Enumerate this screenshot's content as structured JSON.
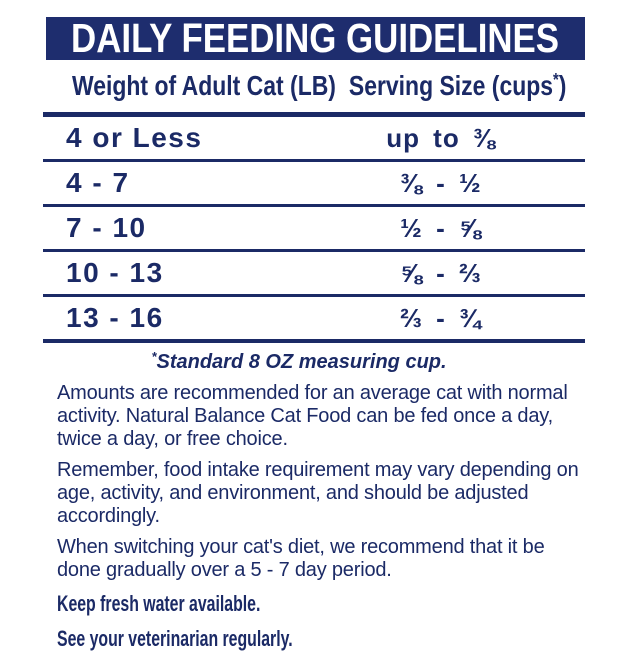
{
  "header": {
    "title": "DAILY FEEDING GUIDELINES"
  },
  "table": {
    "columns": {
      "weight": "Weight of Adult Cat (LB)",
      "serving_prefix": "Serving Size (cups",
      "serving_sup": "*",
      "serving_suffix": ")"
    },
    "rows": [
      {
        "weight": "4 or Less",
        "serving": "up to ⅜"
      },
      {
        "weight": "4 - 7",
        "serving": "⅜ - ½"
      },
      {
        "weight": "7 - 10",
        "serving": "½ - ⅝"
      },
      {
        "weight": "10 - 13",
        "serving": "⅝ - ⅔"
      },
      {
        "weight": "13 - 16",
        "serving": "⅔ - ¾"
      }
    ]
  },
  "footnote": {
    "sup": "*",
    "text": "Standard 8 OZ measuring cup."
  },
  "paragraphs": {
    "p1": "Amounts are recommended for an average cat with normal activity. Natural Balance Cat Food can be fed once a day, twice a day, or free choice.",
    "p2": "Remember, food intake requirement may vary depending on age, activity, and environment, and should be adjusted accordingly.",
    "p3": "When switching your cat's diet, we recommend that it be done gradually over a 5 - 7 day period."
  },
  "notes": {
    "water": "Keep fresh water available.",
    "vet": "See your veterinarian regularly."
  },
  "colors": {
    "navy_banner": "#1e2d6e",
    "navy_text": "#1b2a66",
    "background": "#ffffff"
  }
}
